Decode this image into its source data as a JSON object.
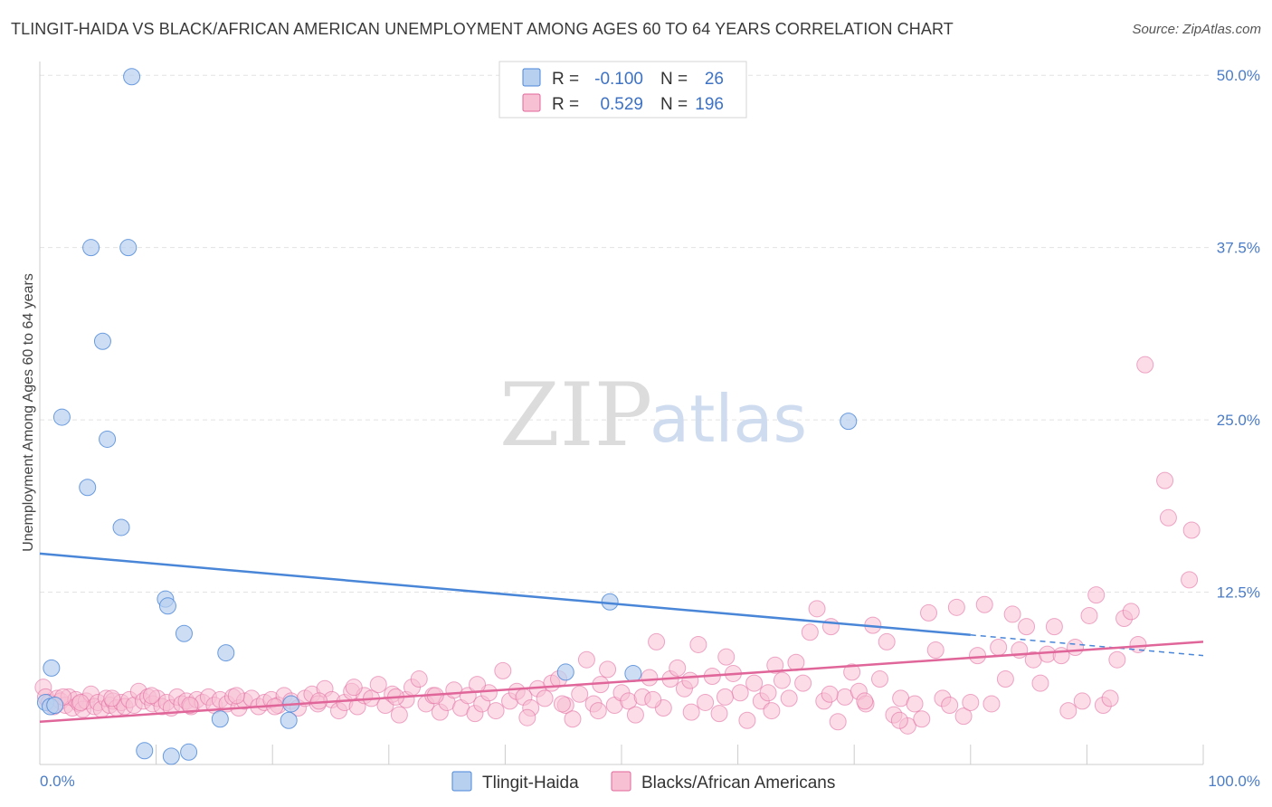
{
  "title": "TLINGIT-HAIDA VS BLACK/AFRICAN AMERICAN UNEMPLOYMENT AMONG AGES 60 TO 64 YEARS CORRELATION CHART",
  "source": "Source: ZipAtlas.com",
  "watermark": {
    "zip": "ZIP",
    "atlas": "atlas"
  },
  "colors": {
    "blue": "#4a86d8",
    "blue_fill": "#b8d0f0",
    "pink": "#e0669a",
    "pink_fill": "#f7c0d3",
    "grid": "#e3e3e3",
    "tick_text": "#4a7cc7"
  },
  "legend": {
    "rows": [
      {
        "series": "Tlingit-Haida",
        "r_label": "R =",
        "r_value": "-0.100",
        "n_label": "N =",
        "n_value": "26"
      },
      {
        "series": "Blacks/African Americans",
        "r_label": "R =",
        "r_value": "0.529",
        "n_label": "N =",
        "n_value": "196"
      }
    ]
  },
  "chart_data": {
    "type": "scatter",
    "title": "TLINGIT-HAIDA VS BLACK/AFRICAN AMERICAN UNEMPLOYMENT AMONG AGES 60 TO 64 YEARS CORRELATION CHART",
    "xlabel": "",
    "ylabel": "Unemployment Among Ages 60 to 64 years",
    "xlim": [
      0,
      100
    ],
    "ylim": [
      0,
      51
    ],
    "x_tick_labels": [
      "0.0%",
      "100.0%"
    ],
    "y_ticks": [
      12.5,
      25.0,
      37.5,
      50.0
    ],
    "y_tick_labels": [
      "12.5%",
      "25.0%",
      "37.5%",
      "50.0%"
    ],
    "series": [
      {
        "name": "Tlingit-Haida",
        "r": -0.1,
        "n": 26,
        "trend": {
          "x0": 0,
          "y0": 15.3,
          "x1": 80,
          "y1": 9.4,
          "dash_to_x": 100,
          "dash_to_y": 7.9
        },
        "points": [
          [
            7.9,
            49.9
          ],
          [
            4.4,
            37.5
          ],
          [
            7.6,
            37.5
          ],
          [
            5.4,
            30.7
          ],
          [
            1.9,
            25.2
          ],
          [
            5.8,
            23.6
          ],
          [
            4.1,
            20.1
          ],
          [
            7.0,
            17.2
          ],
          [
            69.5,
            24.9
          ],
          [
            10.8,
            12.0
          ],
          [
            11.0,
            11.5
          ],
          [
            12.4,
            9.5
          ],
          [
            16.0,
            8.1
          ],
          [
            49.0,
            11.8
          ],
          [
            1.0,
            7.0
          ],
          [
            0.5,
            4.5
          ],
          [
            0.9,
            4.2
          ],
          [
            1.3,
            4.3
          ],
          [
            21.6,
            4.4
          ],
          [
            15.5,
            3.3
          ],
          [
            21.4,
            3.2
          ],
          [
            45.2,
            6.7
          ],
          [
            51.0,
            6.6
          ],
          [
            9.0,
            1.0
          ],
          [
            11.3,
            0.6
          ],
          [
            12.8,
            0.9
          ]
        ]
      },
      {
        "name": "Blacks/African Americans",
        "r": 0.529,
        "n": 196,
        "trend": {
          "x0": 0,
          "y0": 3.1,
          "x1": 100,
          "y1": 8.9
        },
        "points": [
          [
            0.3,
            5.6
          ],
          [
            0.5,
            4.9
          ],
          [
            0.8,
            4.5
          ],
          [
            1.2,
            4.2
          ],
          [
            1.5,
            4.8
          ],
          [
            1.8,
            4.6
          ],
          [
            2.2,
            4.3
          ],
          [
            2.5,
            4.9
          ],
          [
            2.8,
            4.1
          ],
          [
            3.1,
            4.7
          ],
          [
            3.4,
            4.4
          ],
          [
            3.7,
            4.0
          ],
          [
            4.0,
            4.6
          ],
          [
            4.4,
            5.1
          ],
          [
            4.7,
            4.2
          ],
          [
            5.0,
            4.5
          ],
          [
            5.3,
            4.0
          ],
          [
            5.7,
            4.8
          ],
          [
            6.0,
            4.3
          ],
          [
            6.3,
            4.6
          ],
          [
            6.6,
            4.1
          ],
          [
            7.0,
            4.5
          ],
          [
            7.3,
            4.2
          ],
          [
            7.7,
            4.7
          ],
          [
            8.1,
            4.3
          ],
          [
            8.5,
            5.3
          ],
          [
            8.9,
            4.6
          ],
          [
            9.3,
            4.9
          ],
          [
            9.7,
            4.4
          ],
          [
            10.1,
            4.8
          ],
          [
            10.5,
            4.2
          ],
          [
            10.9,
            4.5
          ],
          [
            11.3,
            4.1
          ],
          [
            11.8,
            4.9
          ],
          [
            12.2,
            4.4
          ],
          [
            12.6,
            4.6
          ],
          [
            13.0,
            4.2
          ],
          [
            13.5,
            4.7
          ],
          [
            14.0,
            4.5
          ],
          [
            14.5,
            4.9
          ],
          [
            15.0,
            4.3
          ],
          [
            15.5,
            4.7
          ],
          [
            16.1,
            4.4
          ],
          [
            16.6,
            4.9
          ],
          [
            17.1,
            4.1
          ],
          [
            17.6,
            4.6
          ],
          [
            18.2,
            4.8
          ],
          [
            18.8,
            4.2
          ],
          [
            19.3,
            4.5
          ],
          [
            19.9,
            4.7
          ],
          [
            20.5,
            4.3
          ],
          [
            21.0,
            5.0
          ],
          [
            21.6,
            4.6
          ],
          [
            22.2,
            4.1
          ],
          [
            22.8,
            4.8
          ],
          [
            23.4,
            5.1
          ],
          [
            23.9,
            4.4
          ],
          [
            24.5,
            5.5
          ],
          [
            25.1,
            4.7
          ],
          [
            25.7,
            3.9
          ],
          [
            26.2,
            4.5
          ],
          [
            26.8,
            5.3
          ],
          [
            27.3,
            4.2
          ],
          [
            27.9,
            5.0
          ],
          [
            28.5,
            4.8
          ],
          [
            29.1,
            5.8
          ],
          [
            29.7,
            4.3
          ],
          [
            30.3,
            5.1
          ],
          [
            30.9,
            3.6
          ],
          [
            31.5,
            4.7
          ],
          [
            32.0,
            5.6
          ],
          [
            32.6,
            6.2
          ],
          [
            33.2,
            4.4
          ],
          [
            33.8,
            5.0
          ],
          [
            34.4,
            3.8
          ],
          [
            35.0,
            4.5
          ],
          [
            35.6,
            5.4
          ],
          [
            36.2,
            4.1
          ],
          [
            36.8,
            5.0
          ],
          [
            37.4,
            3.7
          ],
          [
            38.0,
            4.4
          ],
          [
            38.6,
            5.2
          ],
          [
            39.2,
            3.9
          ],
          [
            39.8,
            6.8
          ],
          [
            40.4,
            4.6
          ],
          [
            41.0,
            5.3
          ],
          [
            41.6,
            4.9
          ],
          [
            42.2,
            4.1
          ],
          [
            42.8,
            5.5
          ],
          [
            43.4,
            4.8
          ],
          [
            44.0,
            5.9
          ],
          [
            44.6,
            6.2
          ],
          [
            45.2,
            4.3
          ],
          [
            45.8,
            3.3
          ],
          [
            46.4,
            5.1
          ],
          [
            47.0,
            7.6
          ],
          [
            47.6,
            4.4
          ],
          [
            48.2,
            5.8
          ],
          [
            48.8,
            6.9
          ],
          [
            49.4,
            4.3
          ],
          [
            50.0,
            5.2
          ],
          [
            50.6,
            4.6
          ],
          [
            51.2,
            3.6
          ],
          [
            51.8,
            4.9
          ],
          [
            52.4,
            6.3
          ],
          [
            53.0,
            8.9
          ],
          [
            53.6,
            4.1
          ],
          [
            54.2,
            6.2
          ],
          [
            54.8,
            7.0
          ],
          [
            55.4,
            5.5
          ],
          [
            56.0,
            3.8
          ],
          [
            56.6,
            8.7
          ],
          [
            57.2,
            4.5
          ],
          [
            57.8,
            6.4
          ],
          [
            58.4,
            3.7
          ],
          [
            59.0,
            7.8
          ],
          [
            59.6,
            6.6
          ],
          [
            60.2,
            5.2
          ],
          [
            60.8,
            3.2
          ],
          [
            61.4,
            5.9
          ],
          [
            62.0,
            4.6
          ],
          [
            62.6,
            5.2
          ],
          [
            63.2,
            7.2
          ],
          [
            63.8,
            6.1
          ],
          [
            64.4,
            4.8
          ],
          [
            65.0,
            7.4
          ],
          [
            65.6,
            5.9
          ],
          [
            66.2,
            9.6
          ],
          [
            66.8,
            11.3
          ],
          [
            67.4,
            4.6
          ],
          [
            68.0,
            10.0
          ],
          [
            68.6,
            3.1
          ],
          [
            69.2,
            4.9
          ],
          [
            69.8,
            6.7
          ],
          [
            70.4,
            5.3
          ],
          [
            71.0,
            4.4
          ],
          [
            71.6,
            10.1
          ],
          [
            72.2,
            6.2
          ],
          [
            72.8,
            8.9
          ],
          [
            73.4,
            3.6
          ],
          [
            74.0,
            4.8
          ],
          [
            74.6,
            2.8
          ],
          [
            75.2,
            4.4
          ],
          [
            75.8,
            3.3
          ],
          [
            76.4,
            11.0
          ],
          [
            77.0,
            8.3
          ],
          [
            77.6,
            4.8
          ],
          [
            78.2,
            4.3
          ],
          [
            78.8,
            11.4
          ],
          [
            79.4,
            3.5
          ],
          [
            80.0,
            4.5
          ],
          [
            80.6,
            7.9
          ],
          [
            81.2,
            11.6
          ],
          [
            81.8,
            4.4
          ],
          [
            82.4,
            8.5
          ],
          [
            83.0,
            6.2
          ],
          [
            83.6,
            10.9
          ],
          [
            84.2,
            8.3
          ],
          [
            84.8,
            10.0
          ],
          [
            85.4,
            7.6
          ],
          [
            86.0,
            5.9
          ],
          [
            86.6,
            8.0
          ],
          [
            87.2,
            10.0
          ],
          [
            87.8,
            7.9
          ],
          [
            88.4,
            3.9
          ],
          [
            89.0,
            8.5
          ],
          [
            89.6,
            4.6
          ],
          [
            90.2,
            10.8
          ],
          [
            90.8,
            12.3
          ],
          [
            91.4,
            4.3
          ],
          [
            92.0,
            4.8
          ],
          [
            92.6,
            7.6
          ],
          [
            93.2,
            10.6
          ],
          [
            93.8,
            11.1
          ],
          [
            94.4,
            8.7
          ],
          [
            95.0,
            29.0
          ],
          [
            96.7,
            20.6
          ],
          [
            97.0,
            17.9
          ],
          [
            98.8,
            13.4
          ],
          [
            99.0,
            17.0
          ],
          [
            2.0,
            4.9
          ],
          [
            3.5,
            4.5
          ],
          [
            6.2,
            4.8
          ],
          [
            9.6,
            5.0
          ],
          [
            12.9,
            4.3
          ],
          [
            16.9,
            5.0
          ],
          [
            20.2,
            4.2
          ],
          [
            24.0,
            4.6
          ],
          [
            27.0,
            5.6
          ],
          [
            30.6,
            4.9
          ],
          [
            34.0,
            5.0
          ],
          [
            37.6,
            5.8
          ],
          [
            41.9,
            3.4
          ],
          [
            44.9,
            4.4
          ],
          [
            48.0,
            3.9
          ],
          [
            52.7,
            4.7
          ],
          [
            55.9,
            6.1
          ],
          [
            58.9,
            4.9
          ],
          [
            62.9,
            3.9
          ],
          [
            67.9,
            5.1
          ],
          [
            70.9,
            4.6
          ],
          [
            73.9,
            3.2
          ]
        ]
      }
    ]
  },
  "bottom_legend": [
    {
      "label": "Tlingit-Haida",
      "color": "#b8d0f0"
    },
    {
      "label": "Blacks/African Americans",
      "color": "#f7c0d3"
    }
  ]
}
